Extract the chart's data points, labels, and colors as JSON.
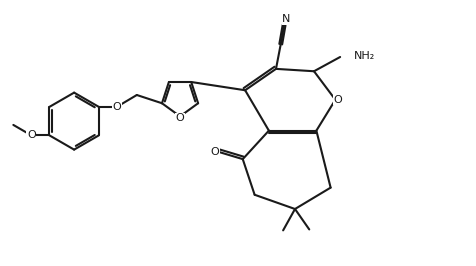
{
  "bg_color": "#ffffff",
  "line_color": "#1a1a1a",
  "line_width": 1.5,
  "figsize": [
    4.76,
    2.66
  ],
  "dpi": 100,
  "xlim": [
    0,
    10
  ],
  "ylim": [
    0,
    5.6
  ]
}
